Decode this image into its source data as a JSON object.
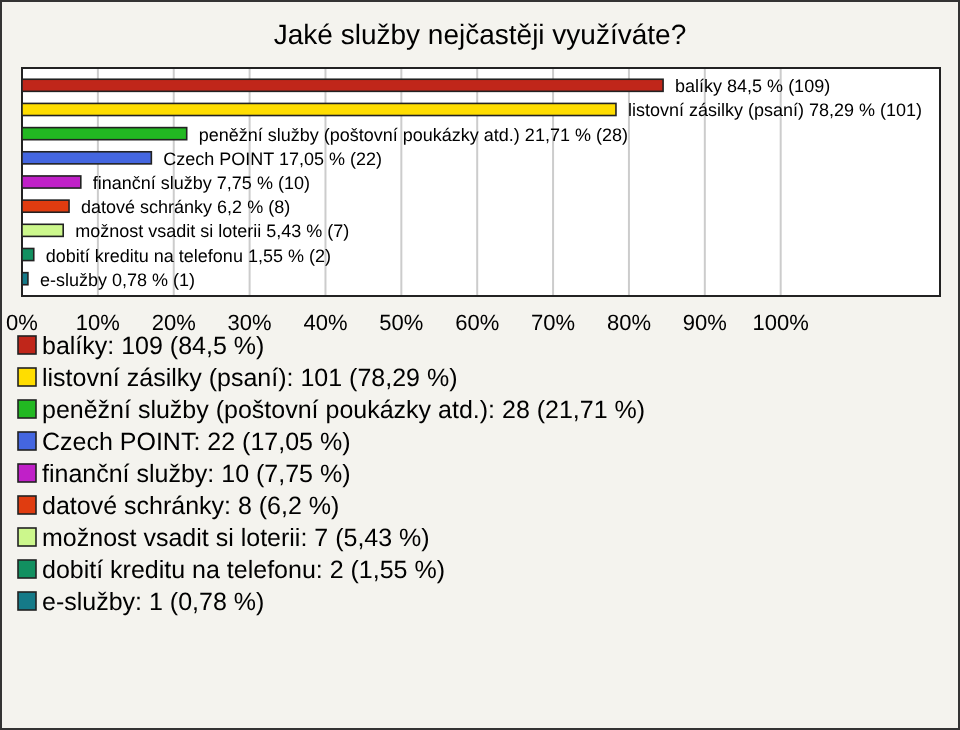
{
  "chart_data": {
    "type": "bar",
    "orientation": "horizontal",
    "title": "Jaké služby nejčastěji využíváte?",
    "categories": [
      "balíky",
      "listovní zásilky (psaní)",
      "peněžní služby (poštovní poukázky atd.)",
      "Czech POINT",
      "finanční služby",
      "datové schránky",
      "možnost vsadit si loterii",
      "dobití kreditu na telefonu",
      "e-služby"
    ],
    "values": [
      84.5,
      78.29,
      21.71,
      17.05,
      7.75,
      6.2,
      5.43,
      1.55,
      0.78
    ],
    "value_labels": [
      "84,5 % (109)",
      "78,29 % (101)",
      "21,71 % (28)",
      "17,05 % (22)",
      "7,75 % (10)",
      "6,2 % (8)",
      "5,43 % (7)",
      "1,55 % (2)",
      "0,78 % (1)"
    ],
    "colors": [
      "#c0261a",
      "#ffdd00",
      "#22b822",
      "#4466e0",
      "#c020c8",
      "#e03c10",
      "#ccf78c",
      "#129060",
      "#157a88"
    ],
    "xlim": [
      0,
      121
    ],
    "xticks": [
      {
        "value": 0,
        "label": "0%"
      },
      {
        "value": 10,
        "label": "10%"
      },
      {
        "value": 20,
        "label": "20%"
      },
      {
        "value": 30,
        "label": "30%"
      },
      {
        "value": 40,
        "label": "40%"
      },
      {
        "value": 50,
        "label": "50%"
      },
      {
        "value": 60,
        "label": "60%"
      },
      {
        "value": 70,
        "label": "70%"
      },
      {
        "value": 80,
        "label": "80%"
      },
      {
        "value": 90,
        "label": "90%"
      },
      {
        "value": 100,
        "label": "100%"
      }
    ],
    "grid": "x",
    "annotations": [
      "balíky: 109 (84,5 %)",
      "listovní zásilky (psaní): 101 (78,29 %)",
      "peněžní služby (poštovní poukázky atd.): 28 (21,71 %)",
      "Czech POINT: 22 (17,05 %)",
      "finanční služby: 10 (7,75 %)",
      "datové schránky: 8 (6,2 %)",
      "možnost vsadit si loterii: 7 (5,43 %)",
      "dobití kreditu na telefonu: 2 (1,55 %)",
      "e-služby: 1 (0,78 %)"
    ]
  }
}
